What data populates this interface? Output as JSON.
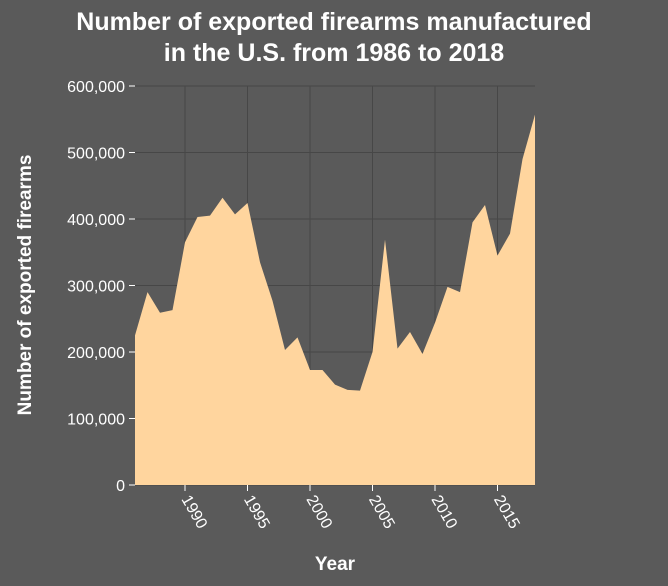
{
  "chart_data": {
    "type": "area",
    "title": [
      "Number of exported firearms manufactured",
      "in the U.S. from 1986 to 2018"
    ],
    "xlabel": "Year",
    "ylabel": "Number of exported firearms",
    "xlim": [
      1986,
      2018
    ],
    "ylim": [
      0,
      600000
    ],
    "x_ticks": [
      1990,
      1995,
      2000,
      2005,
      2010,
      2015
    ],
    "y_ticks": [
      0,
      100000,
      200000,
      300000,
      400000,
      500000,
      600000
    ],
    "y_tick_labels": [
      "0",
      "100,000",
      "200,000",
      "300,000",
      "400,000",
      "500,000",
      "600,000"
    ],
    "grid": true,
    "colors": {
      "background": "#5a5a5a",
      "fill": "#ffd59e",
      "grid": "#474747",
      "text": "#ffffff"
    },
    "series": [
      {
        "x": [
          1986,
          1987,
          1988,
          1989,
          1990,
          1991,
          1992,
          1993,
          1994,
          1995,
          1996,
          1997,
          1998,
          1999,
          2000,
          2001,
          2002,
          2003,
          2004,
          2005,
          2006,
          2007,
          2008,
          2009,
          2010,
          2011,
          2012,
          2013,
          2014,
          2015,
          2016,
          2017,
          2018
        ],
        "values": [
          225000,
          290000,
          259000,
          263000,
          365000,
          403000,
          405000,
          432000,
          407000,
          424000,
          335000,
          277000,
          203000,
          222000,
          173000,
          173000,
          151000,
          143000,
          142000,
          200000,
          369000,
          205000,
          230000,
          197000,
          244000,
          298000,
          290000,
          395000,
          421000,
          345000,
          378000,
          490000,
          557000
        ]
      }
    ]
  }
}
